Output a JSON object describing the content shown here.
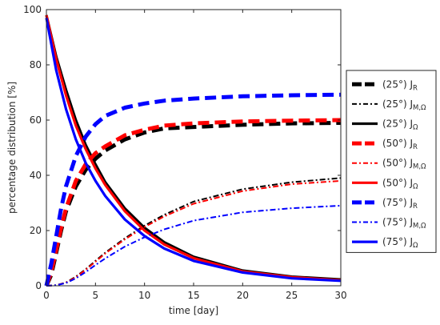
{
  "chart_data": {
    "type": "line",
    "xlabel": "time [day]",
    "ylabel": "percentage distribution [%]",
    "xlim": [
      0,
      30
    ],
    "ylim": [
      0,
      100
    ],
    "xticks": [
      0,
      5,
      10,
      15,
      20,
      25,
      30
    ],
    "yticks": [
      0,
      20,
      40,
      60,
      80,
      100
    ],
    "grid": false,
    "legend_position": "right",
    "series": [
      {
        "name": "(25°) J",
        "subscript": "R",
        "color": "#000000",
        "style": "dashed",
        "weight": "bold",
        "x": [
          0,
          0.5,
          1,
          1.5,
          2,
          3,
          4,
          5,
          6,
          8,
          10,
          12,
          15,
          20,
          25,
          30
        ],
        "y": [
          0,
          4,
          12,
          20,
          27,
          36,
          42,
          46,
          49,
          53,
          55.5,
          57,
          57.5,
          58.3,
          58.8,
          59
        ]
      },
      {
        "name": "(25°) J",
        "subscript": "M,Ω",
        "color": "#000000",
        "style": "dashdot",
        "weight": "normal",
        "x": [
          0,
          1,
          2,
          3,
          4,
          5,
          6,
          8,
          10,
          12,
          15,
          20,
          25,
          30
        ],
        "y": [
          0,
          0.2,
          1.2,
          3.3,
          6,
          9,
          12,
          17.2,
          21.8,
          25.7,
          30.5,
          35,
          37.5,
          39
        ]
      },
      {
        "name": "(25°) J",
        "subscript": "Ω",
        "color": "#000000",
        "style": "solid",
        "weight": "bold",
        "x": [
          0,
          1,
          2,
          3,
          4,
          5,
          6,
          8,
          10,
          12,
          15,
          20,
          25,
          30
        ],
        "y": [
          98,
          83,
          71,
          60,
          51,
          44,
          37.5,
          28,
          21,
          15.8,
          10.5,
          5.5,
          3.3,
          2.3
        ]
      },
      {
        "name": "(50°) J",
        "subscript": "R",
        "color": "#ff0000",
        "style": "dashed",
        "weight": "bold",
        "x": [
          0,
          0.5,
          1,
          1.5,
          2,
          3,
          4,
          5,
          6,
          8,
          10,
          12,
          15,
          20,
          25,
          30
        ],
        "y": [
          0,
          5,
          13,
          21,
          28,
          38,
          44,
          48,
          50.5,
          54.5,
          56.5,
          58,
          58.8,
          59.5,
          59.8,
          60
        ]
      },
      {
        "name": "(50°) J",
        "subscript": "M,Ω",
        "color": "#ff0000",
        "style": "dashdot",
        "weight": "normal",
        "x": [
          0,
          1,
          2,
          3,
          4,
          5,
          6,
          8,
          10,
          12,
          15,
          20,
          25,
          30
        ],
        "y": [
          0,
          0.2,
          1.1,
          3.1,
          5.8,
          8.7,
          11.7,
          16.8,
          21.3,
          25.1,
          29.7,
          34.3,
          36.8,
          38
        ]
      },
      {
        "name": "(50°) J",
        "subscript": "Ω",
        "color": "#ff0000",
        "style": "solid",
        "weight": "bold",
        "x": [
          0,
          1,
          2,
          3,
          4,
          5,
          6,
          8,
          10,
          12,
          15,
          20,
          25,
          30
        ],
        "y": [
          98,
          82,
          69,
          58,
          49.5,
          42.5,
          36.5,
          27,
          20,
          15,
          10,
          5.2,
          3.1,
          2
        ]
      },
      {
        "name": "(75°) J",
        "subscript": "R",
        "color": "#0000ff",
        "style": "dashed",
        "weight": "bold",
        "x": [
          0,
          0.5,
          1,
          1.5,
          2,
          3,
          4,
          5,
          6,
          8,
          10,
          12,
          15,
          20,
          25,
          30
        ],
        "y": [
          0,
          8,
          18,
          28,
          36,
          47,
          54,
          58.5,
          61.5,
          64.5,
          66,
          67,
          67.8,
          68.6,
          69,
          69.2
        ]
      },
      {
        "name": "(75°) J",
        "subscript": "M,Ω",
        "color": "#0000ff",
        "style": "dashdot",
        "weight": "normal",
        "x": [
          0,
          1,
          2,
          3,
          4,
          5,
          6,
          8,
          10,
          12,
          15,
          20,
          25,
          30
        ],
        "y": [
          0,
          0.2,
          1,
          2.7,
          5,
          7.5,
          9.9,
          14.2,
          17.6,
          20.4,
          23.6,
          26.6,
          28.1,
          29
        ]
      },
      {
        "name": "(75°) J",
        "subscript": "Ω",
        "color": "#0000ff",
        "style": "solid",
        "weight": "bold",
        "x": [
          0,
          1,
          2,
          3,
          4,
          5,
          6,
          8,
          10,
          12,
          15,
          20,
          25,
          30
        ],
        "y": [
          97,
          78,
          64,
          53,
          44.5,
          38,
          32.5,
          24,
          18,
          13.5,
          9,
          4.8,
          2.7,
          1.8
        ]
      }
    ]
  }
}
